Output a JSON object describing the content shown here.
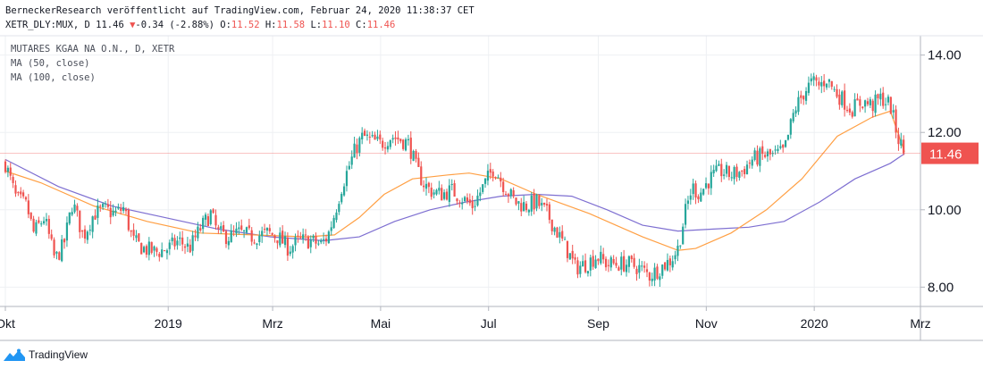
{
  "header": {
    "line1": "BerneckerResearch veröffentlicht auf TradingView.com, Februar 24, 2020 11:38:37 CET",
    "symbol": "XETR_DLY:MUX, D",
    "last": "11.46",
    "change_arrow": "▼",
    "change": "-0.34 (-2.88%)",
    "o_label": "O:",
    "o_value": "11.52",
    "h_label": "H:",
    "h_value": "11.58",
    "l_label": "L:",
    "l_value": "11.10",
    "c_label": "C:",
    "c_value": "11.46"
  },
  "legend": {
    "title": "MUTARES KGAA NA O.N., D, XETR",
    "ma50": "MA (50, close)",
    "ma100": "MA (100, close)"
  },
  "footer": {
    "brand": "TradingView"
  },
  "colors": {
    "up": "#26a69a",
    "down": "#ef5350",
    "ma50": "#ff9f43",
    "ma100": "#7e6fd1",
    "grid": "#eef0f3",
    "axis": "#b2b5be",
    "last_price_bg": "#ef5350"
  },
  "chart_data": {
    "type": "candlestick",
    "title": "MUTARES KGAA NA O.N., D, XETR",
    "ylim": [
      7.5,
      14.5
    ],
    "yticks": [
      8.0,
      10.0,
      12.0,
      14.0
    ],
    "ytick_labels": [
      "8.00",
      "10.00",
      "12.00",
      "14.00"
    ],
    "x_range_days": [
      0,
      512
    ],
    "xticks": [
      {
        "day": 0,
        "label": "Okt"
      },
      {
        "day": 92,
        "label": "2019"
      },
      {
        "day": 151,
        "label": "Mrz"
      },
      {
        "day": 212,
        "label": "Mai"
      },
      {
        "day": 273,
        "label": "Jul"
      },
      {
        "day": 335,
        "label": "Sep"
      },
      {
        "day": 396,
        "label": "Nov"
      },
      {
        "day": 457,
        "label": "2020"
      },
      {
        "day": 517,
        "label": "Mrz"
      }
    ],
    "last_price": 11.46,
    "last_price_label": "11.46",
    "grid": true,
    "price_points": [
      [
        0,
        11.2
      ],
      [
        6,
        10.3
      ],
      [
        12,
        10.1
      ],
      [
        16,
        9.4
      ],
      [
        22,
        9.8
      ],
      [
        28,
        8.7
      ],
      [
        33,
        9.1
      ],
      [
        38,
        10.2
      ],
      [
        44,
        9.3
      ],
      [
        50,
        9.9
      ],
      [
        56,
        10.0
      ],
      [
        62,
        9.9
      ],
      [
        67,
        10.05
      ],
      [
        72,
        9.2
      ],
      [
        78,
        9.0
      ],
      [
        85,
        8.9
      ],
      [
        92,
        9.0
      ],
      [
        98,
        9.2
      ],
      [
        104,
        9.0
      ],
      [
        110,
        9.5
      ],
      [
        116,
        9.9
      ],
      [
        120,
        9.4
      ],
      [
        126,
        9.3
      ],
      [
        132,
        9.4
      ],
      [
        140,
        9.3
      ],
      [
        148,
        9.4
      ],
      [
        154,
        9.3
      ],
      [
        160,
        9.0
      ],
      [
        166,
        9.2
      ],
      [
        172,
        9.2
      ],
      [
        178,
        9.1
      ],
      [
        182,
        9.3
      ],
      [
        186,
        9.9
      ],
      [
        190,
        10.6
      ],
      [
        194,
        11.1
      ],
      [
        198,
        11.6
      ],
      [
        202,
        11.9
      ],
      [
        206,
        11.8
      ],
      [
        212,
        11.7
      ],
      [
        218,
        11.9
      ],
      [
        224,
        11.8
      ],
      [
        228,
        11.7
      ],
      [
        232,
        11.1
      ],
      [
        236,
        10.7
      ],
      [
        240,
        10.5
      ],
      [
        246,
        10.4
      ],
      [
        252,
        10.5
      ],
      [
        258,
        10.3
      ],
      [
        264,
        10.1
      ],
      [
        270,
        10.6
      ],
      [
        276,
        11.1
      ],
      [
        282,
        10.6
      ],
      [
        288,
        10.2
      ],
      [
        294,
        10.1
      ],
      [
        300,
        10.2
      ],
      [
        306,
        9.9
      ],
      [
        312,
        9.4
      ],
      [
        318,
        8.9
      ],
      [
        322,
        8.5
      ],
      [
        328,
        8.6
      ],
      [
        334,
        8.8
      ],
      [
        340,
        8.6
      ],
      [
        346,
        8.6
      ],
      [
        352,
        8.6
      ],
      [
        358,
        8.5
      ],
      [
        364,
        8.3
      ],
      [
        370,
        8.5
      ],
      [
        376,
        8.7
      ],
      [
        380,
        9.0
      ],
      [
        384,
        9.9
      ],
      [
        388,
        10.6
      ],
      [
        392,
        10.4
      ],
      [
        398,
        10.8
      ],
      [
        404,
        11.0
      ],
      [
        410,
        10.9
      ],
      [
        416,
        11.0
      ],
      [
        422,
        11.3
      ],
      [
        428,
        11.4
      ],
      [
        434,
        11.4
      ],
      [
        440,
        11.5
      ],
      [
        446,
        12.6
      ],
      [
        452,
        13.1
      ],
      [
        456,
        13.3
      ],
      [
        460,
        13.2
      ],
      [
        464,
        13.4
      ],
      [
        468,
        13.1
      ],
      [
        474,
        12.8
      ],
      [
        478,
        12.6
      ],
      [
        484,
        12.8
      ],
      [
        490,
        12.7
      ],
      [
        495,
        12.9
      ],
      [
        500,
        12.7
      ],
      [
        504,
        11.9
      ],
      [
        508,
        11.46
      ]
    ],
    "ma50_points": [
      [
        0,
        11.0
      ],
      [
        20,
        10.7
      ],
      [
        50,
        10.1
      ],
      [
        80,
        9.7
      ],
      [
        110,
        9.4
      ],
      [
        140,
        9.35
      ],
      [
        170,
        9.3
      ],
      [
        186,
        9.35
      ],
      [
        200,
        9.8
      ],
      [
        214,
        10.4
      ],
      [
        230,
        10.8
      ],
      [
        250,
        10.9
      ],
      [
        262,
        10.95
      ],
      [
        280,
        10.8
      ],
      [
        300,
        10.4
      ],
      [
        330,
        9.9
      ],
      [
        360,
        9.3
      ],
      [
        380,
        8.95
      ],
      [
        390,
        9.0
      ],
      [
        410,
        9.4
      ],
      [
        430,
        10.0
      ],
      [
        450,
        10.8
      ],
      [
        470,
        11.9
      ],
      [
        490,
        12.4
      ],
      [
        500,
        12.55
      ],
      [
        508,
        11.5
      ]
    ],
    "ma100_points": [
      [
        0,
        11.3
      ],
      [
        30,
        10.6
      ],
      [
        60,
        10.1
      ],
      [
        90,
        9.8
      ],
      [
        120,
        9.5
      ],
      [
        150,
        9.3
      ],
      [
        180,
        9.2
      ],
      [
        200,
        9.3
      ],
      [
        220,
        9.7
      ],
      [
        240,
        10.0
      ],
      [
        260,
        10.2
      ],
      [
        280,
        10.35
      ],
      [
        300,
        10.4
      ],
      [
        320,
        10.35
      ],
      [
        340,
        10.0
      ],
      [
        360,
        9.6
      ],
      [
        380,
        9.45
      ],
      [
        400,
        9.5
      ],
      [
        420,
        9.55
      ],
      [
        440,
        9.7
      ],
      [
        460,
        10.2
      ],
      [
        480,
        10.8
      ],
      [
        500,
        11.2
      ],
      [
        508,
        11.45
      ]
    ]
  }
}
